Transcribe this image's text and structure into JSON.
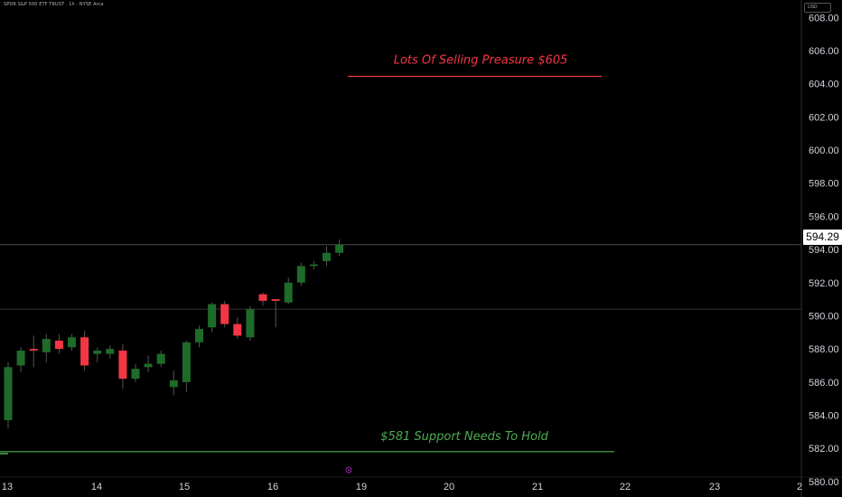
{
  "header": {
    "symbol_label": "SPDR S&P 500 ETF TRUST · 1h · NYSE Arca",
    "currency": "USD"
  },
  "current_price_label": "594.29",
  "colors": {
    "background": "#000000",
    "up": "#1e6b2a",
    "down": "#f23645",
    "resistance": "#f23645",
    "support": "#4caf50",
    "current_line": "#4a4a4a"
  },
  "chart_data": {
    "type": "candlestick",
    "ylim": [
      579.5,
      609
    ],
    "y_ticks": [
      580,
      582,
      584,
      586,
      588,
      590,
      592,
      594,
      596,
      598,
      600,
      602,
      604,
      606,
      608
    ],
    "y_tick_labels": [
      "580.00",
      "582.00",
      "584.00",
      "586.00",
      "588.00",
      "590.00",
      "592.00",
      "594.00",
      "596.00",
      "598.00",
      "600.00",
      "602.00",
      "604.00",
      "606.00",
      "608.00"
    ],
    "x_tick_labels": [
      "13",
      "14",
      "15",
      "16",
      "19",
      "20",
      "21",
      "22",
      "23",
      "2"
    ],
    "candles": [
      {
        "o": 583.7,
        "h": 587.2,
        "l": 583.2,
        "c": 586.9
      },
      {
        "o": 587.0,
        "h": 588.1,
        "l": 586.6,
        "c": 587.9
      },
      {
        "o": 588.0,
        "h": 588.8,
        "l": 586.9,
        "c": 587.9
      },
      {
        "o": 587.8,
        "h": 588.9,
        "l": 587.2,
        "c": 588.6
      },
      {
        "o": 588.5,
        "h": 588.9,
        "l": 587.7,
        "c": 588.0
      },
      {
        "o": 588.1,
        "h": 588.9,
        "l": 587.9,
        "c": 588.7
      },
      {
        "o": 588.7,
        "h": 589.1,
        "l": 586.7,
        "c": 587.0
      },
      {
        "o": 587.7,
        "h": 588.1,
        "l": 587.2,
        "c": 587.9
      },
      {
        "o": 587.7,
        "h": 588.2,
        "l": 587.4,
        "c": 588.0
      },
      {
        "o": 587.9,
        "h": 588.3,
        "l": 585.6,
        "c": 586.2
      },
      {
        "o": 586.2,
        "h": 587.1,
        "l": 586.0,
        "c": 586.8
      },
      {
        "o": 586.9,
        "h": 587.6,
        "l": 586.6,
        "c": 587.1
      },
      {
        "o": 587.1,
        "h": 587.9,
        "l": 586.9,
        "c": 587.7
      },
      {
        "o": 585.7,
        "h": 586.7,
        "l": 585.2,
        "c": 586.1
      },
      {
        "o": 586.0,
        "h": 588.5,
        "l": 585.4,
        "c": 588.4
      },
      {
        "o": 588.4,
        "h": 589.4,
        "l": 588.1,
        "c": 589.2
      },
      {
        "o": 589.3,
        "h": 590.8,
        "l": 589.0,
        "c": 590.7
      },
      {
        "o": 590.7,
        "h": 590.9,
        "l": 589.3,
        "c": 589.5
      },
      {
        "o": 589.5,
        "h": 589.9,
        "l": 588.6,
        "c": 588.8
      },
      {
        "o": 588.7,
        "h": 590.6,
        "l": 588.5,
        "c": 590.4
      },
      {
        "o": 591.3,
        "h": 591.4,
        "l": 590.6,
        "c": 590.9
      },
      {
        "o": 591.0,
        "h": 591.0,
        "l": 589.3,
        "c": 590.9
      },
      {
        "o": 590.8,
        "h": 592.3,
        "l": 590.7,
        "c": 592.0
      },
      {
        "o": 592.0,
        "h": 593.2,
        "l": 591.8,
        "c": 593.0
      },
      {
        "o": 593.0,
        "h": 593.3,
        "l": 592.8,
        "c": 593.1
      },
      {
        "o": 593.3,
        "h": 594.2,
        "l": 593.0,
        "c": 593.8
      },
      {
        "o": 593.8,
        "h": 594.6,
        "l": 593.6,
        "c": 594.3
      }
    ],
    "annotations": [
      {
        "text": "Lots Of Selling Preasure $605",
        "price": 604.5,
        "color": "#f23645"
      },
      {
        "text": "$581 Support Needs To Hold",
        "price": 581.8,
        "color": "#4caf50"
      }
    ],
    "horizontal_lines": [
      594.29,
      590.4
    ]
  }
}
